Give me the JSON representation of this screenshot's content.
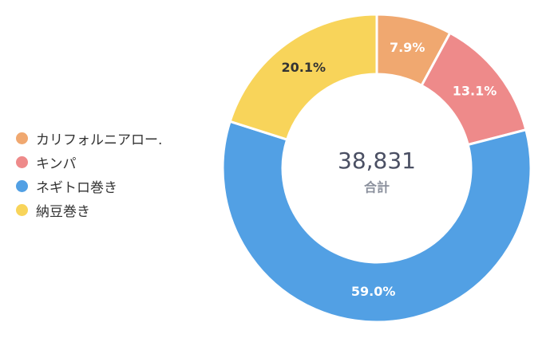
{
  "chart_data": {
    "type": "pie",
    "title": "",
    "center_total": "38,831",
    "center_caption": "合計",
    "categories": [
      "カリフォルニアロール",
      "キンパ",
      "ネギトロ巻き",
      "納豆巻き"
    ],
    "legend_labels": [
      "カリフォルニアロー.",
      "キンパ",
      "ネギトロ巻き",
      "納豆巻き"
    ],
    "values": [
      7.9,
      13.1,
      59.0,
      20.1
    ],
    "value_labels": [
      "7.9%",
      "13.1%",
      "59.0%",
      "20.1%"
    ],
    "colors": [
      "#f0a870",
      "#ee8a8a",
      "#52a0e4",
      "#f8d45a"
    ],
    "label_colors": [
      "#ffffff",
      "#ffffff",
      "#ffffff",
      "#333333"
    ],
    "legend_position": "left",
    "start_angle": "top",
    "direction": "clockwise"
  }
}
